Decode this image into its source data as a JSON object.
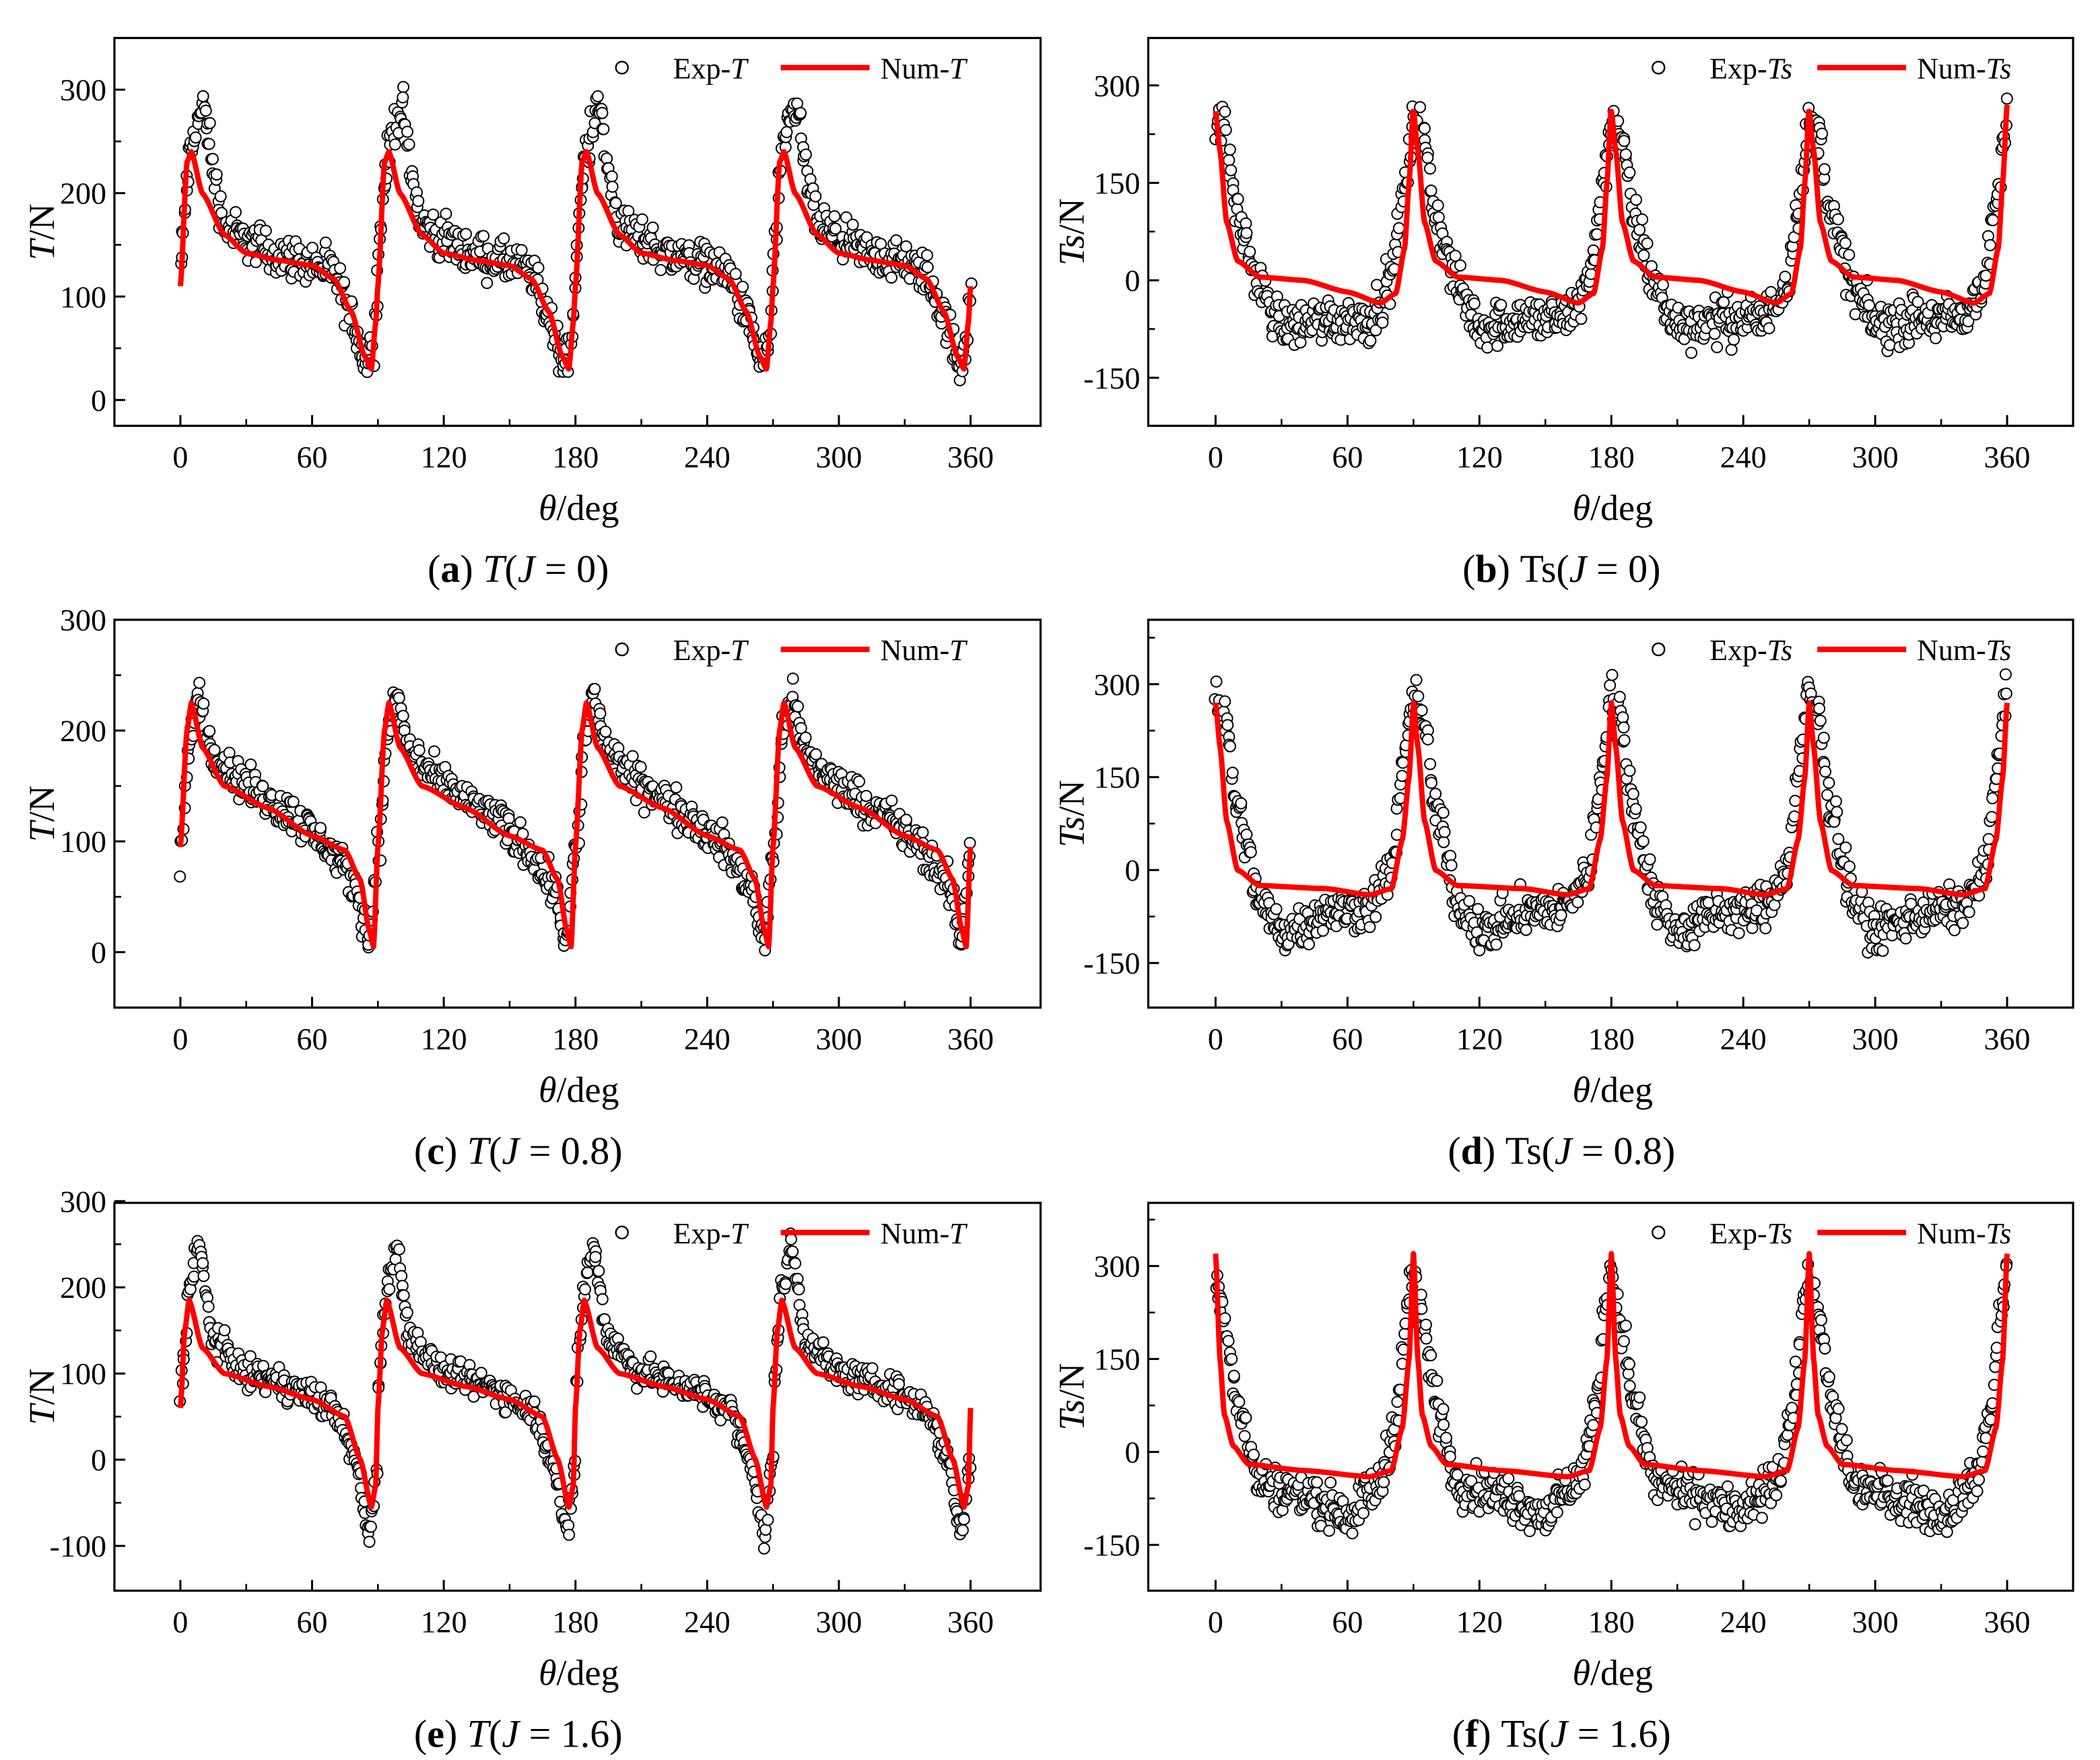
{
  "colors": {
    "num": "#ff0000",
    "exp_stroke": "#000000",
    "exp_fill": "#ffffff",
    "axis": "#000000"
  },
  "chart_data": [
    {
      "type": "line+scatter",
      "id": "a",
      "caption": {
        "label": "a",
        "quantity": "T",
        "quantity_italic": true,
        "J": "0"
      },
      "xlabel": {
        "var": "θ",
        "unit": "/deg"
      },
      "ylabel": {
        "var": "T",
        "unit": "/N"
      },
      "xlim": [
        -30,
        392
      ],
      "ylim": [
        -25,
        350
      ],
      "xticks": [
        0,
        60,
        120,
        180,
        240,
        300,
        360
      ],
      "yticks": [
        0,
        100,
        200,
        300
      ],
      "legend": {
        "position": "top-right",
        "entries": [
          {
            "prefix": "Exp-",
            "var": "T",
            "kind": "scatter"
          },
          {
            "prefix": "Num-",
            "var": "T",
            "kind": "line"
          }
        ]
      },
      "period": 90,
      "num": [
        [
          0,
          110
        ],
        [
          3,
          230
        ],
        [
          5,
          240
        ],
        [
          10,
          200
        ],
        [
          20,
          160
        ],
        [
          30,
          142
        ],
        [
          45,
          135
        ],
        [
          60,
          130
        ],
        [
          70,
          117
        ],
        [
          78,
          85
        ],
        [
          84,
          42
        ],
        [
          87,
          30
        ],
        [
          89,
          75
        ],
        [
          90,
          110
        ]
      ],
      "exp": [
        [
          0,
          130
        ],
        [
          4,
          230
        ],
        [
          8,
          270
        ],
        [
          11,
          285
        ],
        [
          15,
          220
        ],
        [
          20,
          170
        ],
        [
          30,
          155
        ],
        [
          45,
          140
        ],
        [
          60,
          132
        ],
        [
          70,
          122
        ],
        [
          78,
          80
        ],
        [
          85,
          35
        ],
        [
          88,
          55
        ],
        [
          90,
          120
        ]
      ],
      "exp_spread": 14
    },
    {
      "type": "line+scatter",
      "id": "b",
      "caption": {
        "label": "b",
        "quantity": "Ts",
        "quantity_italic": false,
        "J": "0"
      },
      "xlabel": {
        "var": "θ",
        "unit": "/deg"
      },
      "ylabel": {
        "var": "Ts",
        "unit": "/N"
      },
      "xlim": [
        -30,
        392
      ],
      "ylim": [
        -224,
        373
      ],
      "xticks": [
        0,
        60,
        120,
        180,
        240,
        300,
        360
      ],
      "yticks": [
        -150,
        0,
        150,
        300
      ],
      "legend": {
        "position": "top-right",
        "entries": [
          {
            "prefix": "Exp-",
            "var": "Ts",
            "kind": "scatter"
          },
          {
            "prefix": "Num-",
            "var": "Ts",
            "kind": "line"
          }
        ]
      },
      "period": 90,
      "num": [
        [
          0,
          260
        ],
        [
          2,
          200
        ],
        [
          5,
          90
        ],
        [
          10,
          30
        ],
        [
          20,
          5
        ],
        [
          40,
          0
        ],
        [
          60,
          -18
        ],
        [
          75,
          -35
        ],
        [
          82,
          -20
        ],
        [
          86,
          50
        ],
        [
          88,
          150
        ],
        [
          90,
          270
        ]
      ],
      "exp": [
        [
          0,
          240
        ],
        [
          4,
          230
        ],
        [
          10,
          100
        ],
        [
          20,
          -10
        ],
        [
          30,
          -70
        ],
        [
          50,
          -60
        ],
        [
          70,
          -60
        ],
        [
          80,
          0
        ],
        [
          85,
          120
        ],
        [
          90,
          240
        ]
      ],
      "exp_spread": 25
    },
    {
      "type": "line+scatter",
      "id": "c",
      "caption": {
        "label": "c",
        "quantity": "T",
        "quantity_italic": true,
        "J": "0.8"
      },
      "xlabel": {
        "var": "θ",
        "unit": "/deg"
      },
      "ylabel": {
        "var": "T",
        "unit": "/N"
      },
      "xlim": [
        -30,
        392
      ],
      "ylim": [
        -50,
        300
      ],
      "xticks": [
        0,
        60,
        120,
        180,
        240,
        300,
        360
      ],
      "yticks": [
        0,
        100,
        200,
        300
      ],
      "legend": {
        "position": "top-right",
        "entries": [
          {
            "prefix": "Exp-",
            "var": "T",
            "kind": "scatter"
          },
          {
            "prefix": "Num-",
            "var": "T",
            "kind": "line"
          }
        ]
      },
      "period": 90,
      "num": [
        [
          0,
          95
        ],
        [
          3,
          200
        ],
        [
          5,
          225
        ],
        [
          10,
          185
        ],
        [
          20,
          150
        ],
        [
          40,
          130
        ],
        [
          60,
          105
        ],
        [
          75,
          92
        ],
        [
          82,
          65
        ],
        [
          86,
          20
        ],
        [
          88,
          5
        ],
        [
          90,
          95
        ]
      ],
      "exp": [
        [
          0,
          80
        ],
        [
          4,
          190
        ],
        [
          8,
          232
        ],
        [
          15,
          180
        ],
        [
          30,
          150
        ],
        [
          50,
          125
        ],
        [
          65,
          100
        ],
        [
          80,
          60
        ],
        [
          86,
          10
        ],
        [
          90,
          100
        ]
      ],
      "exp_spread": 12
    },
    {
      "type": "line+scatter",
      "id": "d",
      "caption": {
        "label": "d",
        "quantity": "Ts",
        "quantity_italic": false,
        "J": "0.8"
      },
      "xlabel": {
        "var": "θ",
        "unit": "/deg"
      },
      "ylabel": {
        "var": "Ts",
        "unit": "/N"
      },
      "xlim": [
        -30,
        392
      ],
      "ylim": [
        -222,
        404
      ],
      "xticks": [
        0,
        60,
        120,
        180,
        240,
        300,
        360
      ],
      "yticks": [
        -150,
        0,
        150,
        300
      ],
      "legend": {
        "position": "top-right",
        "entries": [
          {
            "prefix": "Exp-",
            "var": "Ts",
            "kind": "scatter"
          },
          {
            "prefix": "Num-",
            "var": "Ts",
            "kind": "line"
          }
        ]
      },
      "period": 90,
      "num": [
        [
          0,
          270
        ],
        [
          2,
          200
        ],
        [
          5,
          80
        ],
        [
          10,
          0
        ],
        [
          20,
          -25
        ],
        [
          50,
          -30
        ],
        [
          70,
          -40
        ],
        [
          80,
          -30
        ],
        [
          85,
          50
        ],
        [
          88,
          150
        ],
        [
          90,
          270
        ]
      ],
      "exp": [
        [
          0,
          280
        ],
        [
          4,
          250
        ],
        [
          10,
          100
        ],
        [
          20,
          -50
        ],
        [
          30,
          -100
        ],
        [
          50,
          -70
        ],
        [
          70,
          -60
        ],
        [
          80,
          0
        ],
        [
          85,
          150
        ],
        [
          90,
          290
        ]
      ],
      "exp_spread": 25
    },
    {
      "type": "line+scatter",
      "id": "e",
      "caption": {
        "label": "e",
        "quantity": "T",
        "quantity_italic": true,
        "J": "1.6"
      },
      "xlabel": {
        "var": "θ",
        "unit": "/deg"
      },
      "ylabel": {
        "var": "T",
        "unit": "/N"
      },
      "xlim": [
        -30,
        392
      ],
      "ylim": [
        -152,
        298
      ],
      "xticks": [
        0,
        60,
        120,
        180,
        240,
        300,
        360
      ],
      "yticks": [
        -100,
        0,
        100,
        200,
        300
      ],
      "legend": {
        "position": "top-right",
        "entries": [
          {
            "prefix": "Exp-",
            "var": "T",
            "kind": "scatter"
          },
          {
            "prefix": "Num-",
            "var": "T",
            "kind": "line"
          }
        ]
      },
      "period": 90,
      "num": [
        [
          0,
          60
        ],
        [
          2,
          150
        ],
        [
          4,
          185
        ],
        [
          10,
          130
        ],
        [
          20,
          100
        ],
        [
          40,
          85
        ],
        [
          60,
          70
        ],
        [
          75,
          50
        ],
        [
          82,
          0
        ],
        [
          87,
          -55
        ],
        [
          89,
          -30
        ],
        [
          90,
          60
        ]
      ],
      "exp": [
        [
          0,
          80
        ],
        [
          4,
          200
        ],
        [
          8,
          250
        ],
        [
          15,
          140
        ],
        [
          30,
          100
        ],
        [
          50,
          85
        ],
        [
          70,
          60
        ],
        [
          80,
          0
        ],
        [
          86,
          -90
        ],
        [
          90,
          0
        ]
      ],
      "exp_spread": 12
    },
    {
      "type": "line+scatter",
      "id": "f",
      "caption": {
        "label": "f",
        "quantity": "Ts",
        "quantity_italic": false,
        "J": "1.6"
      },
      "xlabel": {
        "var": "θ",
        "unit": "/deg"
      },
      "ylabel": {
        "var": "Ts",
        "unit": "/N"
      },
      "xlim": [
        -30,
        392
      ],
      "ylim": [
        -224,
        402
      ],
      "xticks": [
        0,
        60,
        120,
        180,
        240,
        300,
        360
      ],
      "yticks": [
        -150,
        0,
        150,
        300
      ],
      "legend": {
        "position": "top-right",
        "entries": [
          {
            "prefix": "Exp-",
            "var": "Ts",
            "kind": "scatter"
          },
          {
            "prefix": "Num-",
            "var": "Ts",
            "kind": "line"
          }
        ]
      },
      "period": 90,
      "num": [
        [
          0,
          320
        ],
        [
          2,
          150
        ],
        [
          4,
          60
        ],
        [
          8,
          10
        ],
        [
          15,
          -20
        ],
        [
          40,
          -30
        ],
        [
          70,
          -40
        ],
        [
          80,
          -30
        ],
        [
          85,
          40
        ],
        [
          88,
          150
        ],
        [
          90,
          320
        ]
      ],
      "exp": [
        [
          0,
          280
        ],
        [
          5,
          200
        ],
        [
          10,
          80
        ],
        [
          20,
          -50
        ],
        [
          40,
          -70
        ],
        [
          60,
          -100
        ],
        [
          75,
          -50
        ],
        [
          82,
          50
        ],
        [
          88,
          250
        ],
        [
          90,
          300
        ]
      ],
      "exp_spread": 25
    }
  ]
}
